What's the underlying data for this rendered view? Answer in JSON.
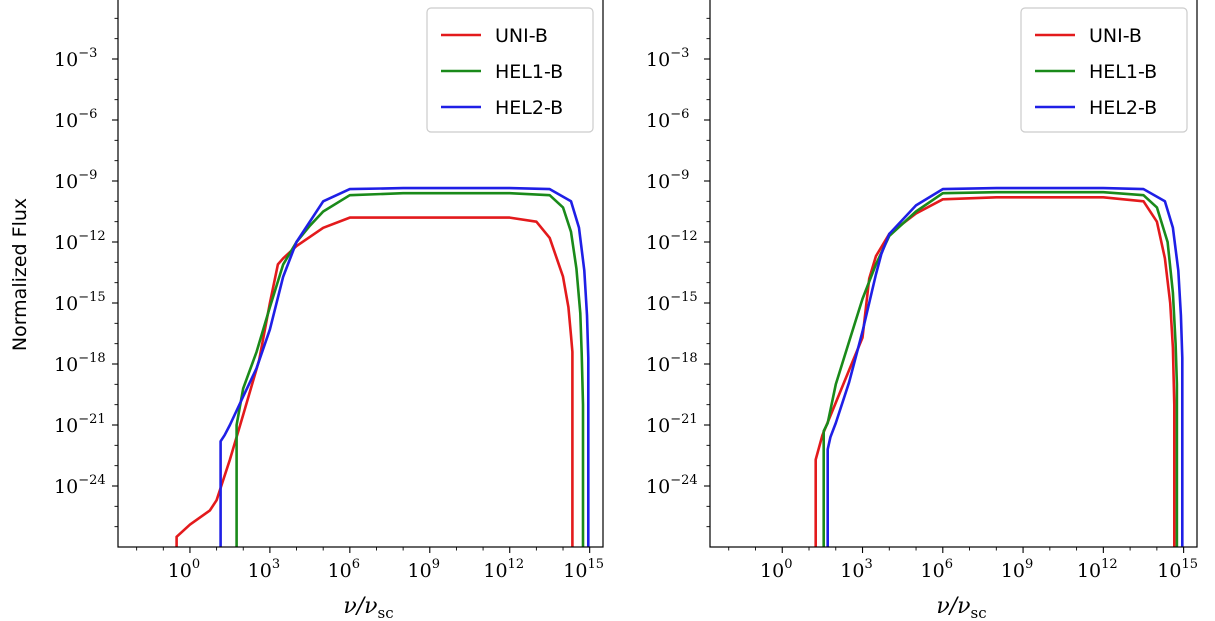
{
  "chart_data": [
    {
      "type": "line",
      "ylabel": "Normalized Flux",
      "xlabel": "ν/ν_sc",
      "x_scale": "log",
      "y_scale": "log",
      "x_ticks": [
        "10^0",
        "10^3",
        "10^6",
        "10^9",
        "10^12",
        "10^15"
      ],
      "y_ticks": [
        "10^-24",
        "10^-21",
        "10^-18",
        "10^-15",
        "10^-12",
        "10^-9",
        "10^-6",
        "10^-3"
      ],
      "xlim_log10": [
        -2.7,
        15.5
      ],
      "ylim_log10": [
        -27.0,
        0.0
      ],
      "legend_position": "upper right",
      "series": [
        {
          "name": "UNI-B",
          "color": "#e31a1c",
          "log10_x": [
            -0.5,
            -0.5,
            0.0,
            0.75,
            1.0,
            1.5,
            2.0,
            2.6,
            3.0,
            3.3,
            3.5,
            4.0,
            5.0,
            6.0,
            8.0,
            12.0,
            13.0,
            13.5,
            14.0,
            14.2,
            14.3,
            14.35,
            14.35
          ],
          "log10_y": [
            -27.0,
            -26.5,
            -25.9,
            -25.2,
            -24.7,
            -22.7,
            -20.5,
            -17.8,
            -15.0,
            -13.1,
            -12.8,
            -12.2,
            -11.3,
            -10.8,
            -10.8,
            -10.8,
            -11.0,
            -11.8,
            -13.7,
            -15.2,
            -16.6,
            -17.4,
            -27.0
          ]
        },
        {
          "name": "HEL1-B",
          "color": "#1a8a1a",
          "log10_x": [
            1.75,
            1.75,
            2.0,
            2.5,
            3.0,
            3.5,
            4.0,
            4.5,
            5.0,
            6.0,
            8.0,
            12.0,
            13.5,
            14.0,
            14.3,
            14.5,
            14.65,
            14.7,
            14.75,
            14.75
          ],
          "log10_y": [
            -27.0,
            -21.0,
            -19.2,
            -17.4,
            -15.2,
            -13.1,
            -12.0,
            -11.2,
            -10.5,
            -9.7,
            -9.6,
            -9.6,
            -9.7,
            -10.3,
            -11.5,
            -13.3,
            -15.5,
            -17.5,
            -20.0,
            -27.0
          ]
        },
        {
          "name": "HEL2-B",
          "color": "#1f1fe6",
          "log10_x": [
            1.15,
            1.15,
            1.3,
            1.5,
            2.0,
            2.5,
            3.0,
            3.5,
            4.0,
            5.0,
            6.0,
            8.0,
            12.0,
            13.5,
            14.3,
            14.6,
            14.8,
            14.9,
            14.95,
            14.95
          ],
          "log10_y": [
            -27.0,
            -21.8,
            -21.5,
            -21.0,
            -19.6,
            -18.2,
            -16.3,
            -13.7,
            -12.0,
            -10.0,
            -9.4,
            -9.35,
            -9.35,
            -9.4,
            -10.0,
            -11.3,
            -13.4,
            -15.6,
            -17.7,
            -27.0
          ]
        }
      ]
    },
    {
      "type": "line",
      "ylabel": "",
      "xlabel": "ν/ν_sc",
      "x_scale": "log",
      "y_scale": "log",
      "x_ticks": [
        "10^0",
        "10^3",
        "10^6",
        "10^9",
        "10^12",
        "10^15"
      ],
      "y_ticks": [
        "10^-24",
        "10^-21",
        "10^-18",
        "10^-15",
        "10^-12",
        "10^-9",
        "10^-6",
        "10^-3"
      ],
      "xlim_log10": [
        -2.7,
        15.5
      ],
      "ylim_log10": [
        -27.0,
        0.0
      ],
      "legend_position": "upper right",
      "series": [
        {
          "name": "UNI-B",
          "color": "#e31a1c",
          "log10_x": [
            1.25,
            1.25,
            1.5,
            2.0,
            2.5,
            3.0,
            3.25,
            3.5,
            4.0,
            5.0,
            6.0,
            8.0,
            12.0,
            13.5,
            14.0,
            14.3,
            14.5,
            14.6,
            14.65,
            14.65
          ],
          "log10_y": [
            -27.0,
            -22.7,
            -21.5,
            -19.9,
            -18.3,
            -16.7,
            -13.8,
            -12.7,
            -11.6,
            -10.6,
            -9.9,
            -9.8,
            -9.8,
            -10.0,
            -11.0,
            -12.8,
            -15.0,
            -17.2,
            -20.0,
            -27.0
          ]
        },
        {
          "name": "HEL1-B",
          "color": "#1a8a1a",
          "log10_x": [
            1.55,
            1.55,
            1.7,
            2.0,
            2.5,
            3.0,
            3.5,
            4.0,
            5.0,
            6.0,
            8.0,
            12.0,
            13.5,
            14.0,
            14.4,
            14.6,
            14.7,
            14.75,
            14.75
          ],
          "log10_y": [
            -27.0,
            -21.3,
            -20.9,
            -19.0,
            -16.9,
            -14.8,
            -13.1,
            -11.7,
            -10.5,
            -9.6,
            -9.55,
            -9.55,
            -9.7,
            -10.3,
            -12.0,
            -14.5,
            -17.0,
            -19.0,
            -27.0
          ]
        },
        {
          "name": "HEL2-B",
          "color": "#1f1fe6",
          "log10_x": [
            1.7,
            1.7,
            1.8,
            2.0,
            2.5,
            3.0,
            3.5,
            3.7,
            4.0,
            5.0,
            6.0,
            8.0,
            12.0,
            13.5,
            14.3,
            14.6,
            14.8,
            14.9,
            14.95,
            14.95
          ],
          "log10_y": [
            -27.0,
            -22.2,
            -21.6,
            -20.9,
            -18.9,
            -16.4,
            -13.6,
            -12.6,
            -11.6,
            -10.2,
            -9.4,
            -9.35,
            -9.35,
            -9.4,
            -10.0,
            -11.3,
            -13.4,
            -15.6,
            -17.7,
            -27.0
          ]
        }
      ]
    }
  ]
}
